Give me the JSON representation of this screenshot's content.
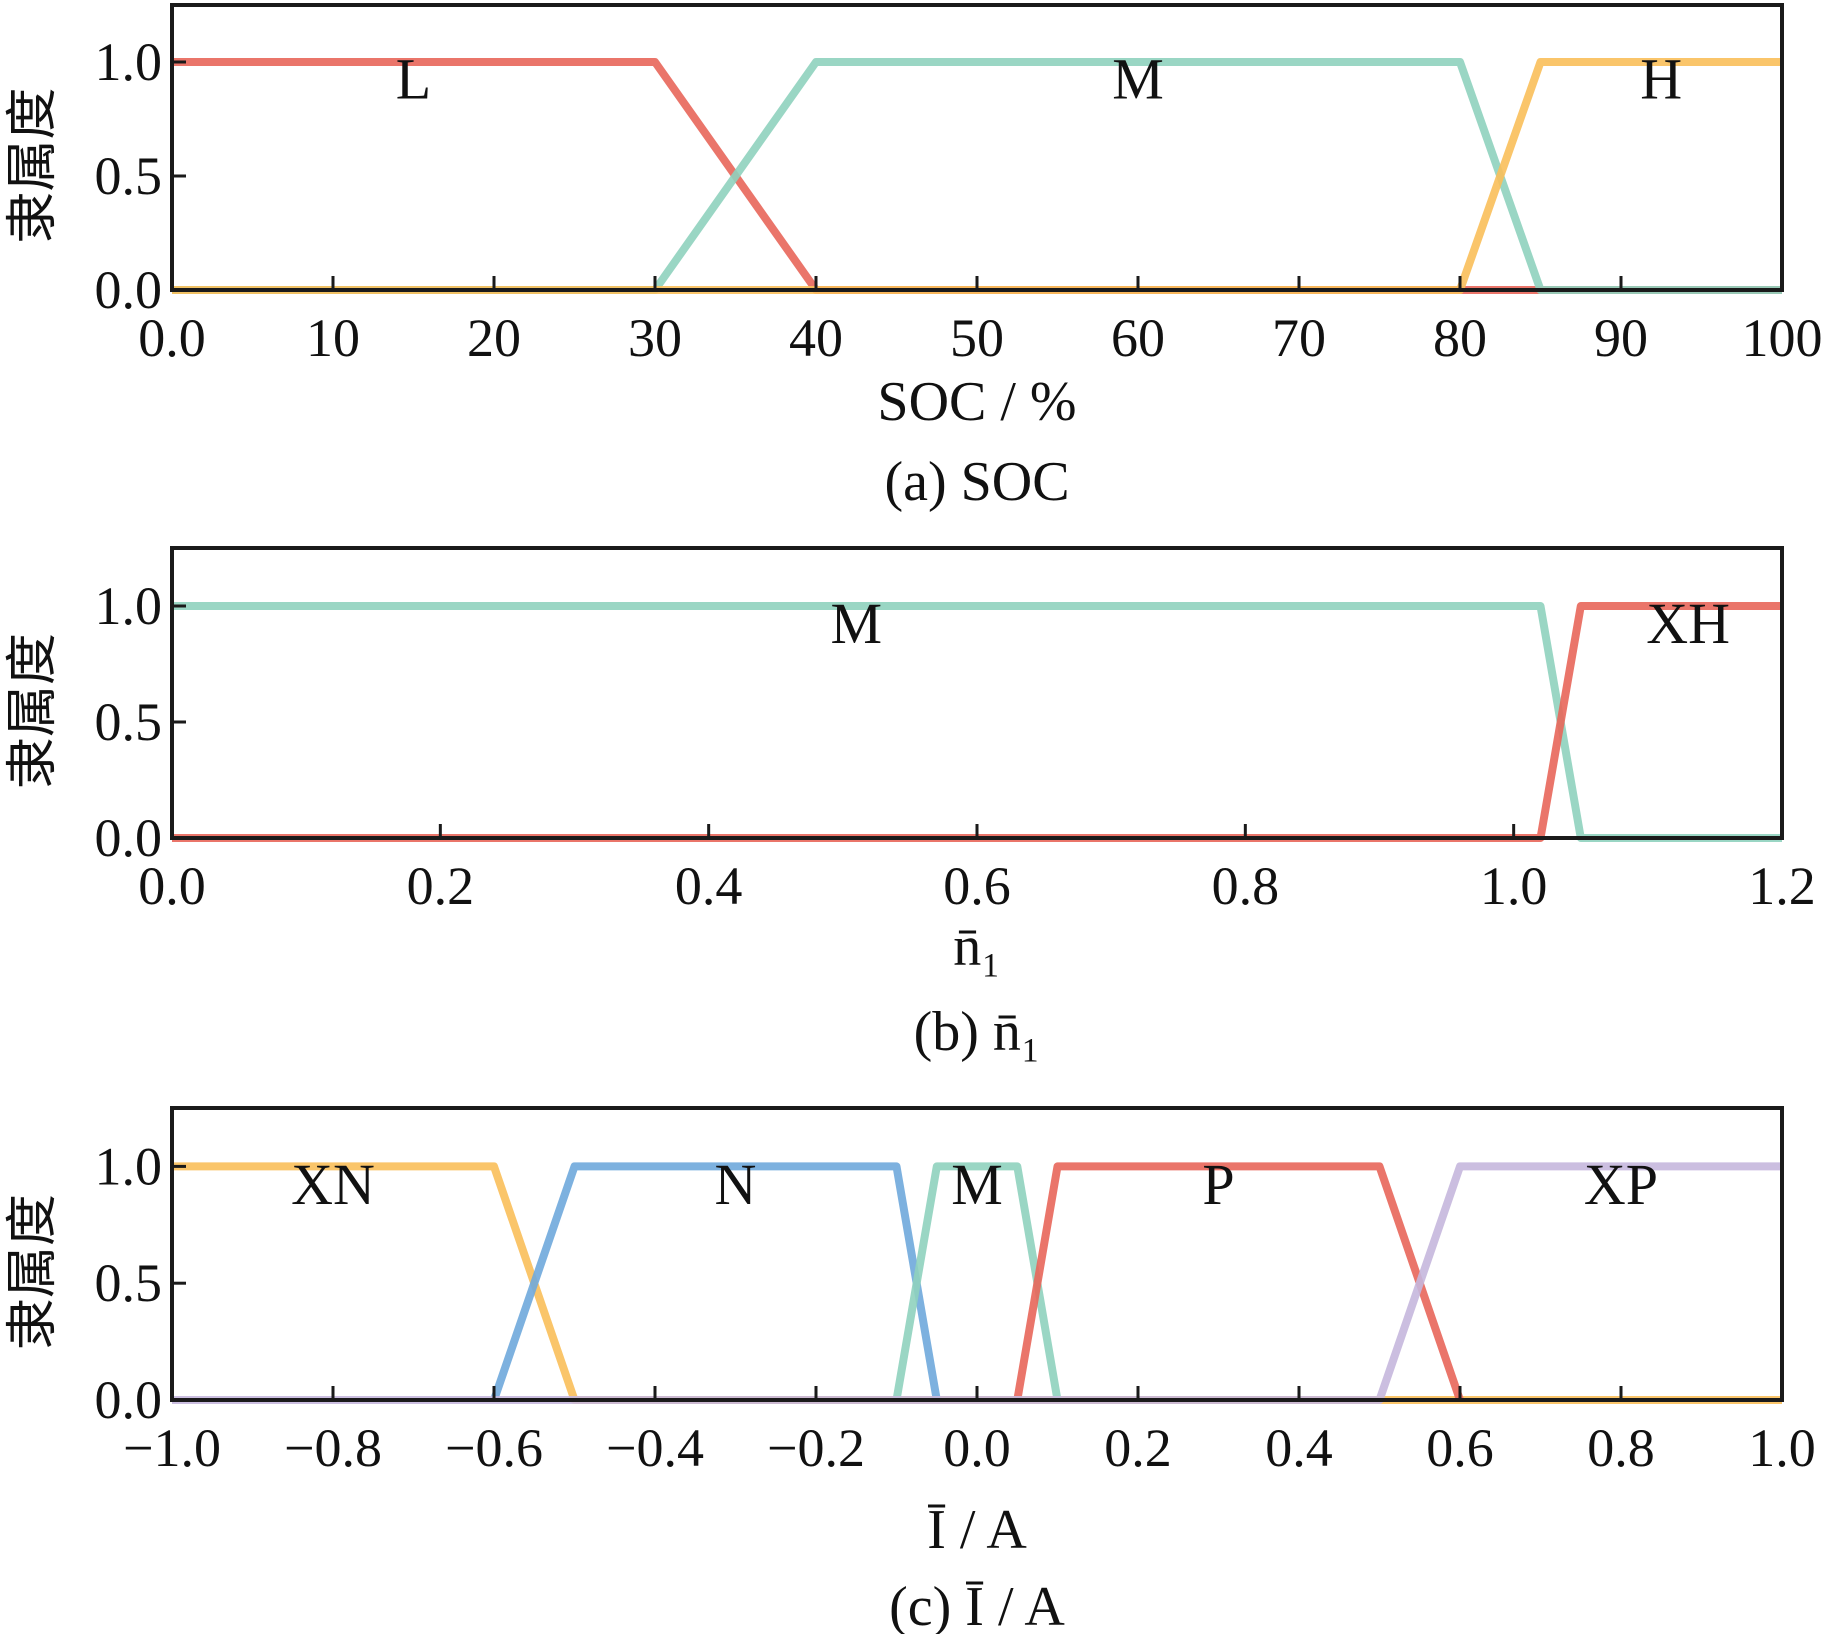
{
  "chart_data": [
    {
      "type": "line",
      "caption": "(a) SOC",
      "xlabel": "SOC / %",
      "ylabel": "隶属度",
      "xlim": [
        0,
        100
      ],
      "ylim": [
        0,
        1.25
      ],
      "xticks": [
        0,
        10,
        20,
        30,
        40,
        50,
        60,
        70,
        80,
        90,
        100
      ],
      "xtick_labels": [
        "0.0",
        "10",
        "20",
        "30",
        "40",
        "50",
        "60",
        "70",
        "80",
        "90",
        "100"
      ],
      "yticks": [
        0,
        0.5,
        1.0
      ],
      "ytick_labels": [
        "0.0",
        "0.5",
        "1.0"
      ],
      "series": [
        {
          "name": "L",
          "color": "#e8665a",
          "label_x": 15,
          "x": [
            0,
            30,
            40,
            100
          ],
          "y": [
            1,
            1,
            0,
            0
          ]
        },
        {
          "name": "M",
          "color": "#8fd1be",
          "label_x": 60,
          "x": [
            0,
            30,
            40,
            80,
            85,
            100
          ],
          "y": [
            0,
            0,
            1,
            1,
            0,
            0
          ]
        },
        {
          "name": "H",
          "color": "#f9bf5a",
          "label_x": 92.5,
          "x": [
            0,
            80,
            85,
            100
          ],
          "y": [
            0,
            0,
            1,
            1
          ]
        }
      ]
    },
    {
      "type": "line",
      "caption": "(b) n̄₁",
      "xlabel": "n̄₁",
      "ylabel": "隶属度",
      "xlim": [
        0,
        1.2
      ],
      "ylim": [
        0,
        1.25
      ],
      "xticks": [
        0,
        0.2,
        0.4,
        0.6,
        0.8,
        1.0,
        1.2
      ],
      "xtick_labels": [
        "0.0",
        "0.2",
        "0.4",
        "0.6",
        "0.8",
        "1.0",
        "1.2"
      ],
      "yticks": [
        0,
        0.5,
        1.0
      ],
      "ytick_labels": [
        "0.0",
        "0.5",
        "1.0"
      ],
      "series": [
        {
          "name": "M",
          "color": "#8fd1be",
          "label_x": 0.51,
          "x": [
            0,
            1.02,
            1.05,
            1.2
          ],
          "y": [
            1,
            1,
            0,
            0
          ]
        },
        {
          "name": "XH",
          "color": "#e8665a",
          "label_x": 1.13,
          "x": [
            0,
            1.02,
            1.05,
            1.2
          ],
          "y": [
            0,
            0,
            1,
            1
          ]
        }
      ]
    },
    {
      "type": "line",
      "caption": "(c) Ī / A",
      "xlabel": "Ī / A",
      "ylabel": "隶属度",
      "xlim": [
        -1.0,
        1.0
      ],
      "ylim": [
        0,
        1.25
      ],
      "xticks": [
        -1.0,
        -0.8,
        -0.6,
        -0.4,
        -0.2,
        0.0,
        0.2,
        0.4,
        0.6,
        0.8,
        1.0
      ],
      "xtick_labels": [
        "−1.0",
        "−0.8",
        "−0.6",
        "−0.4",
        "−0.2",
        "0.0",
        "0.2",
        "0.4",
        "0.6",
        "0.8",
        "1.0"
      ],
      "yticks": [
        0,
        0.5,
        1.0
      ],
      "ytick_labels": [
        "0.0",
        "0.5",
        "1.0"
      ],
      "series": [
        {
          "name": "XN",
          "color": "#f9bf5a",
          "label_x": -0.8,
          "x": [
            -1.0,
            -0.6,
            -0.5,
            1.0
          ],
          "y": [
            1,
            1,
            0,
            0
          ]
        },
        {
          "name": "N",
          "color": "#6fa8dc",
          "label_x": -0.3,
          "x": [
            -0.6,
            -0.5,
            -0.1,
            -0.05
          ],
          "y": [
            0,
            1,
            1,
            0
          ]
        },
        {
          "name": "M",
          "color": "#8fd1be",
          "label_x": 0.0,
          "x": [
            -0.1,
            -0.05,
            0.05,
            0.1
          ],
          "y": [
            0,
            1,
            1,
            0
          ]
        },
        {
          "name": "P",
          "color": "#e8665a",
          "label_x": 0.3,
          "x": [
            0.05,
            0.1,
            0.5,
            0.6
          ],
          "y": [
            0,
            1,
            1,
            0
          ]
        },
        {
          "name": "XP",
          "color": "#c5b7dd",
          "label_x": 0.8,
          "x": [
            -1.0,
            0.5,
            0.6,
            1.0
          ],
          "y": [
            0,
            0,
            1,
            1
          ]
        }
      ]
    }
  ]
}
